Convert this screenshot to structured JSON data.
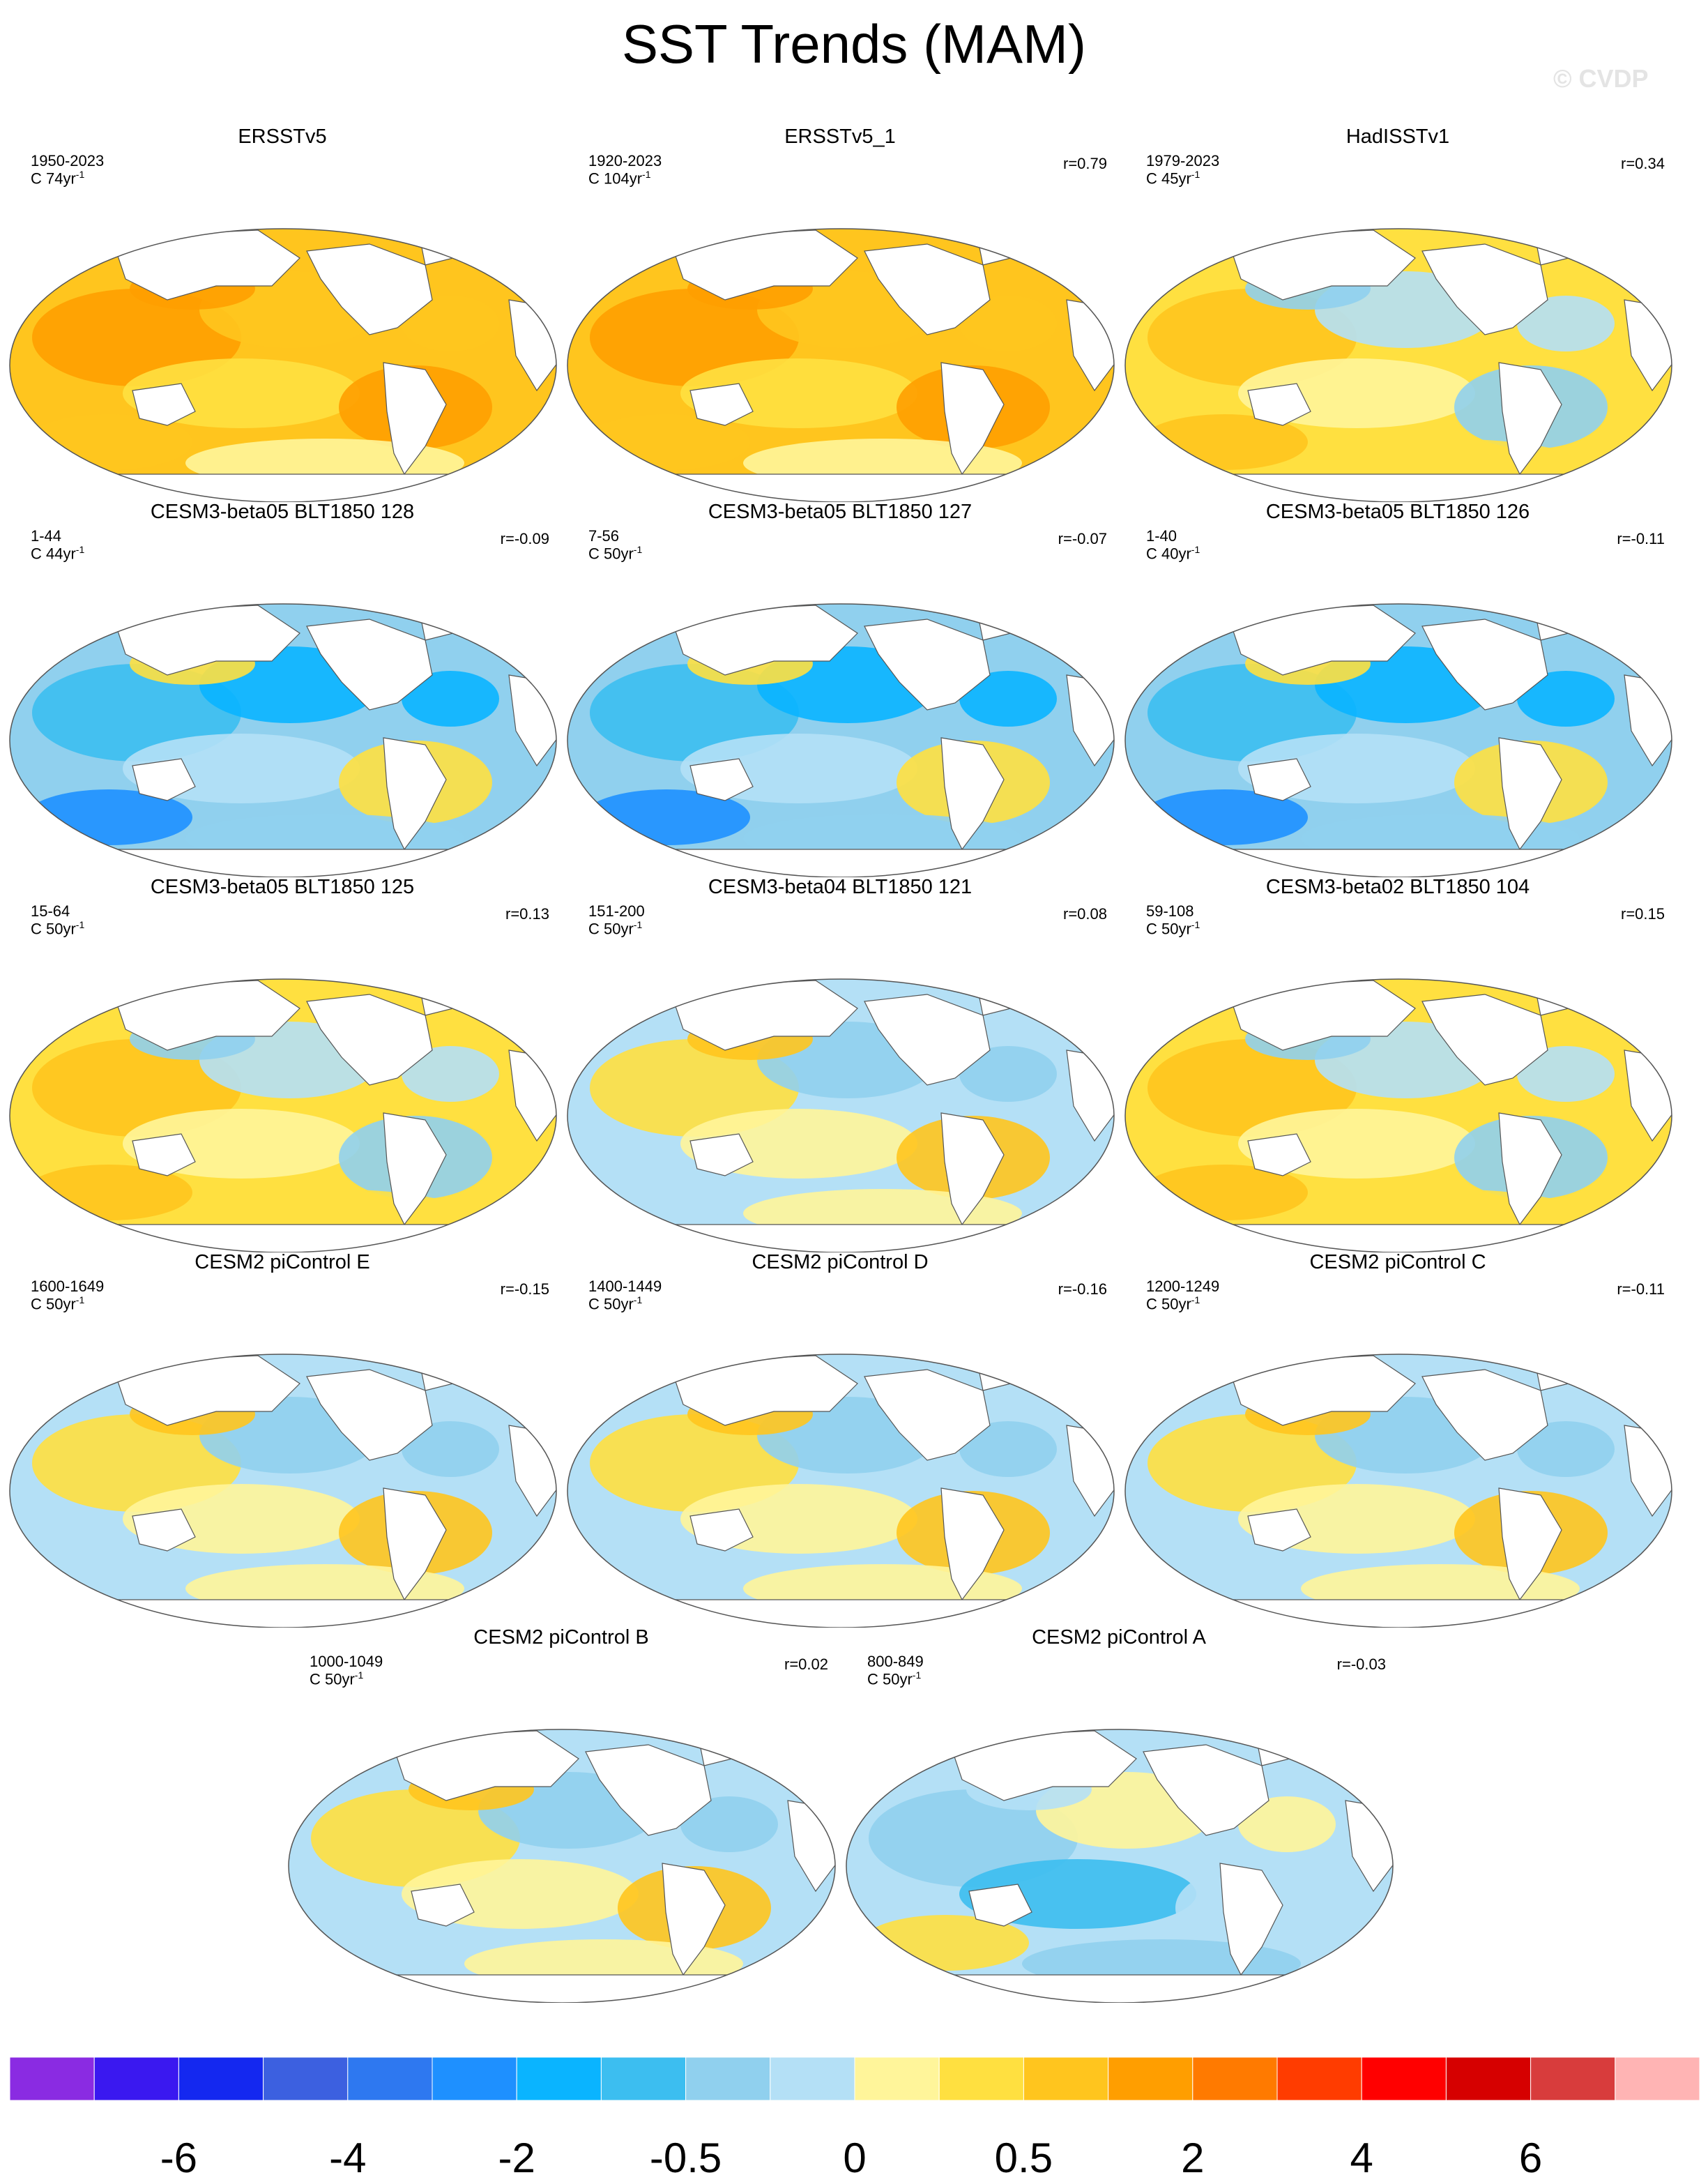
{
  "title": "SST Trends (MAM)",
  "watermark": "© CVDP",
  "panels": [
    {
      "name": "ERSSTv5",
      "period": "1950-2023",
      "units_prefix": "C ",
      "units_num": "74yr",
      "units_sup": "-1",
      "corr": "",
      "style": "warm-obs"
    },
    {
      "name": "ERSSTv5_1",
      "period": "1920-2023",
      "units_prefix": "C ",
      "units_num": "104yr",
      "units_sup": "-1",
      "corr": "r=0.79",
      "style": "warm-obs"
    },
    {
      "name": "HadISSTv1",
      "period": "1979-2023",
      "units_prefix": "C ",
      "units_num": "45yr",
      "units_sup": "-1",
      "corr": "r=0.34",
      "style": "warm-mixed"
    },
    {
      "name": "CESM3-beta05 BLT1850 128",
      "period": "1-44",
      "units_prefix": "C ",
      "units_num": "44yr",
      "units_sup": "-1",
      "corr": "r=-0.09",
      "style": "cool"
    },
    {
      "name": "CESM3-beta05 BLT1850 127",
      "period": "7-56",
      "units_prefix": "C ",
      "units_num": "50yr",
      "units_sup": "-1",
      "corr": "r=-0.07",
      "style": "cool"
    },
    {
      "name": "CESM3-beta05 BLT1850 126",
      "period": "1-40",
      "units_prefix": "C ",
      "units_num": "40yr",
      "units_sup": "-1",
      "corr": "r=-0.11",
      "style": "cool"
    },
    {
      "name": "CESM3-beta05 BLT1850 125",
      "period": "15-64",
      "units_prefix": "C ",
      "units_num": "50yr",
      "units_sup": "-1",
      "corr": "r=0.13",
      "style": "warm-mixed"
    },
    {
      "name": "CESM3-beta04 BLT1850 121",
      "period": "151-200",
      "units_prefix": "C ",
      "units_num": "50yr",
      "units_sup": "-1",
      "corr": "r=0.08",
      "style": "mixed"
    },
    {
      "name": "CESM3-beta02 BLT1850 104",
      "period": "59-108",
      "units_prefix": "C ",
      "units_num": "50yr",
      "units_sup": "-1",
      "corr": "r=0.15",
      "style": "warm-mixed"
    },
    {
      "name": "CESM2 piControl E",
      "period": "1600-1649",
      "units_prefix": "C ",
      "units_num": "50yr",
      "units_sup": "-1",
      "corr": "r=-0.15",
      "style": "mixed"
    },
    {
      "name": "CESM2 piControl D",
      "period": "1400-1449",
      "units_prefix": "C ",
      "units_num": "50yr",
      "units_sup": "-1",
      "corr": "r=-0.16",
      "style": "mixed"
    },
    {
      "name": "CESM2 piControl C",
      "period": "1200-1249",
      "units_prefix": "C ",
      "units_num": "50yr",
      "units_sup": "-1",
      "corr": "r=-0.11",
      "style": "mixed"
    },
    {
      "name": "CESM2 piControl B",
      "period": "1000-1049",
      "units_prefix": "C ",
      "units_num": "50yr",
      "units_sup": "-1",
      "corr": "r=0.02",
      "style": "mixed"
    },
    {
      "name": "CESM2 piControl A",
      "period": "800-849",
      "units_prefix": "C ",
      "units_num": "50yr",
      "units_sup": "-1",
      "corr": "r=-0.03",
      "style": "cool-mixed"
    }
  ],
  "colorbar": {
    "colors": [
      "#8a2be2",
      "#3a18f0",
      "#1428f0",
      "#3c60e0",
      "#2e78f0",
      "#1e90ff",
      "#0ab4ff",
      "#3cbef0",
      "#90d0ee",
      "#b4e0f6",
      "#fff59a",
      "#ffe040",
      "#ffc51e",
      "#ff9e00",
      "#ff7a00",
      "#ff3c00",
      "#ff0000",
      "#d60000",
      "#d83c3c",
      "#ffb4b4"
    ],
    "labels": [
      "-6",
      "-4",
      "-2",
      "-0.5",
      "0",
      "0.5",
      "2",
      "4",
      "6"
    ],
    "label_boundary_index": [
      2,
      4,
      6,
      8,
      10,
      12,
      14,
      16,
      18
    ]
  }
}
